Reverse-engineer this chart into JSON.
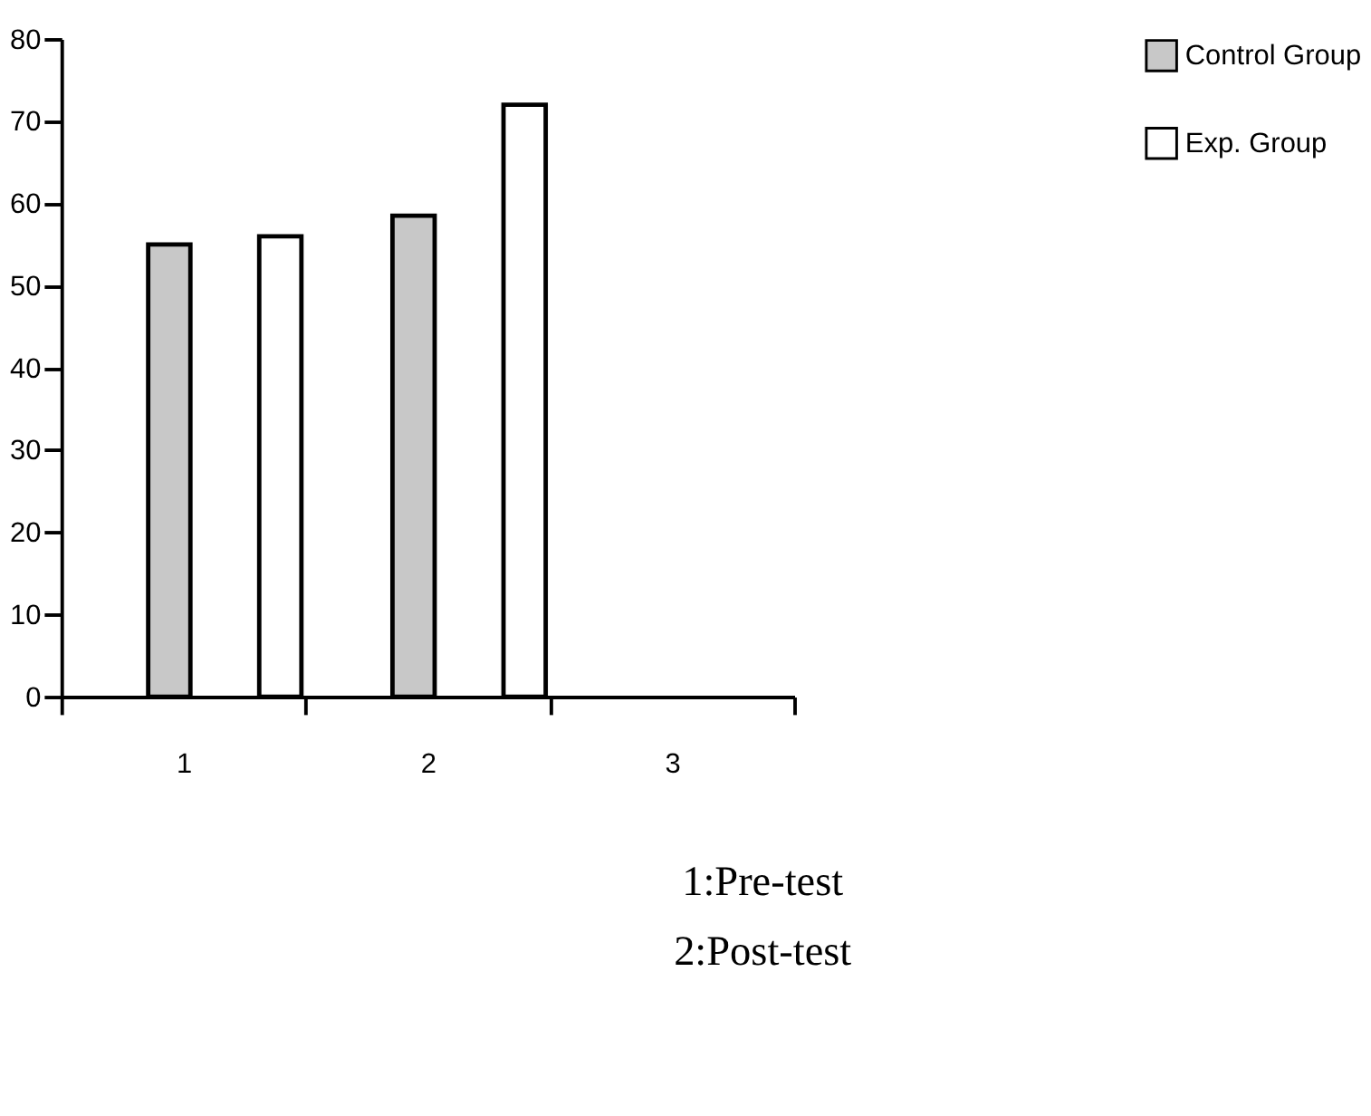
{
  "chart_data": {
    "type": "bar",
    "categories": [
      "1",
      "2",
      "3"
    ],
    "series": [
      {
        "name": "Control Group",
        "color": "#c8c8c8",
        "values": [
          55,
          58.5,
          null
        ]
      },
      {
        "name": "Exp. Group",
        "color": "#ffffff",
        "values": [
          56,
          72,
          null
        ]
      }
    ],
    "ylim": [
      0,
      80
    ],
    "yticks": [
      0,
      10,
      20,
      30,
      40,
      50,
      60,
      70,
      80
    ],
    "grid": false,
    "legend": "right",
    "annotations": [
      "1:Pre-test",
      "2:Post-test"
    ]
  }
}
